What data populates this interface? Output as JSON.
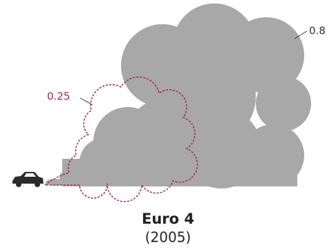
{
  "title": "Euro 4",
  "subtitle": "(2005)",
  "clouds": [
    {
      "label": "0.8"
    },
    {
      "label": "0.25"
    }
  ]
}
